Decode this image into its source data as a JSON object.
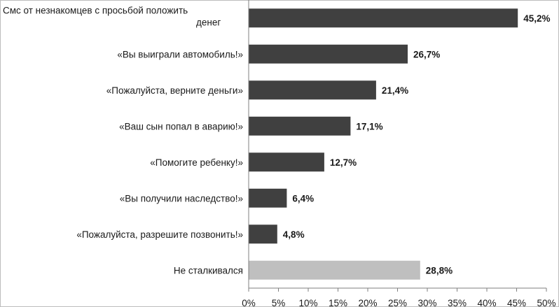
{
  "chart_data": {
    "type": "bar",
    "orientation": "horizontal",
    "categories": [
      "Смс от незнакомцев с просьбой положить денег",
      "«Вы выиграли автомобиль!»",
      "«Пожалуйста, верните деньги»",
      "«Ваш сын попал в аварию!»",
      "«Помогите ребенку!»",
      "«Вы получили наследство!»",
      "«Пожалуйста, разрешите позвонить!»",
      "Не сталкивался"
    ],
    "category_lines": [
      [
        "Смс от незнакомцев с просьбой положить",
        "денег"
      ],
      [
        "«Вы выиграли автомобиль!»"
      ],
      [
        "«Пожалуйста, верните деньги»"
      ],
      [
        "«Ваш сын попал в аварию!»"
      ],
      [
        "«Помогите ребенку!»"
      ],
      [
        "«Вы получили наследство!»"
      ],
      [
        "«Пожалуйста, разрешите позвонить!»"
      ],
      [
        "Не сталкивался"
      ]
    ],
    "values": [
      45.2,
      26.7,
      21.4,
      17.1,
      12.7,
      6.4,
      4.8,
      28.8
    ],
    "value_labels": [
      "45,2%",
      "26,7%",
      "21,4%",
      "17,1%",
      "12,7%",
      "6,4%",
      "4,8%",
      "28,8%"
    ],
    "xlim": [
      0,
      50
    ],
    "x_ticks": [
      0,
      5,
      10,
      15,
      20,
      25,
      30,
      35,
      40,
      45,
      50
    ],
    "x_tick_labels": [
      "0%",
      "5%",
      "10%",
      "15%",
      "20%",
      "25%",
      "30%",
      "35%",
      "40%",
      "45%",
      "50%"
    ],
    "grid": false,
    "colors": {
      "bar": "#404040",
      "highlight_bar": "#bfbfbf"
    },
    "highlight_index": 7
  }
}
